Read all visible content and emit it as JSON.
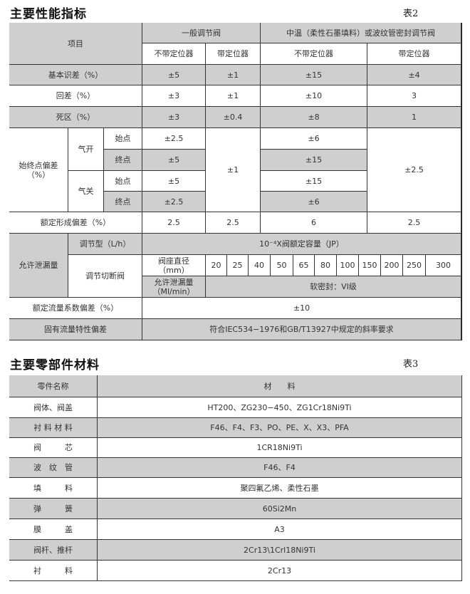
{
  "performance": {
    "title": "主要性能指标",
    "table_no": "表2",
    "header": {
      "item": "项目",
      "group1": "一般调节阀",
      "group2": "中温（柔性石墨填料）或波纹管密封调节阀",
      "sub": [
        "不带定位器",
        "带定位器",
        "不带定位器",
        "带定位器"
      ]
    },
    "basic_error": {
      "label": "基本识差（%）",
      "values": [
        "±5",
        "±1",
        "±15",
        "±4"
      ]
    },
    "hysteresis": {
      "label": "回差（%）",
      "values": [
        "±3",
        "±1",
        "±10",
        "3"
      ]
    },
    "dead_band": {
      "label": "死区（%）",
      "values": [
        "±3",
        "±0.4",
        "±8",
        "1"
      ]
    },
    "endpoint": {
      "label": "始终点偏差（%）",
      "air_open": "气开",
      "air_close": "气关",
      "start": "始点",
      "end": "终点",
      "g1_nopos": [
        "±2.5",
        "±5",
        "±5",
        "±2.5"
      ],
      "g1_pos": "±1",
      "g2_nopos": [
        "±6",
        "±15",
        "±15",
        "±6"
      ],
      "g2_pos": "±2.5"
    },
    "rated_travel": {
      "label": "额定形成偏差（%）",
      "values": [
        "2.5",
        "2.5",
        "6",
        "2.5"
      ]
    },
    "leakage": {
      "label": "允许泄漏量",
      "regulating_label": "调节型（L/h）",
      "regulating_value": "10⁻⁴X阀额定容量（JP）",
      "shutoff_label": "调节切断阀",
      "seat_label": "阀座直径\n（mm）",
      "seat_sizes": [
        "20",
        "25",
        "40",
        "50",
        "65",
        "80",
        "100",
        "150",
        "200",
        "250",
        "300"
      ],
      "allow_label": "允许泄漏量\n（Ml/min）",
      "allow_value": "软密封：VI级"
    },
    "flow_coef": {
      "label": "额定流量系数偏差（%）",
      "value": "±10"
    },
    "flow_char": {
      "label": "固有流量特性偏差",
      "value": "符合IEC534−1976和GB/T13927中规定的斜率要求"
    }
  },
  "materials": {
    "title": "主要零部件材料",
    "table_no": "表3",
    "header": {
      "part": "零件名称",
      "material": "材　　料"
    },
    "rows": [
      {
        "part": "阀体、阀盖",
        "material": "HT200、ZG230−450、ZG1Cr18Ni9Ti"
      },
      {
        "part": "衬 料 材 料",
        "material": "F46、F4、F3、PO、PE、X、X3、PFA"
      },
      {
        "part": "阀　　　芯",
        "material": "1CR18Ni9Ti"
      },
      {
        "part": "波　纹　管",
        "material": "F46、F4"
      },
      {
        "part": "填　　　料",
        "material": "聚四氟乙烯、柔性石墨"
      },
      {
        "part": "弹　　　簧",
        "material": "60Si2Mn"
      },
      {
        "part": "膜　　　盖",
        "material": "A3"
      },
      {
        "part": "阀杆、推杆",
        "material": "2Cr13\\1Crl18Ni9Ti"
      },
      {
        "part": "衬　　　料",
        "material": "2Cr13"
      }
    ]
  }
}
